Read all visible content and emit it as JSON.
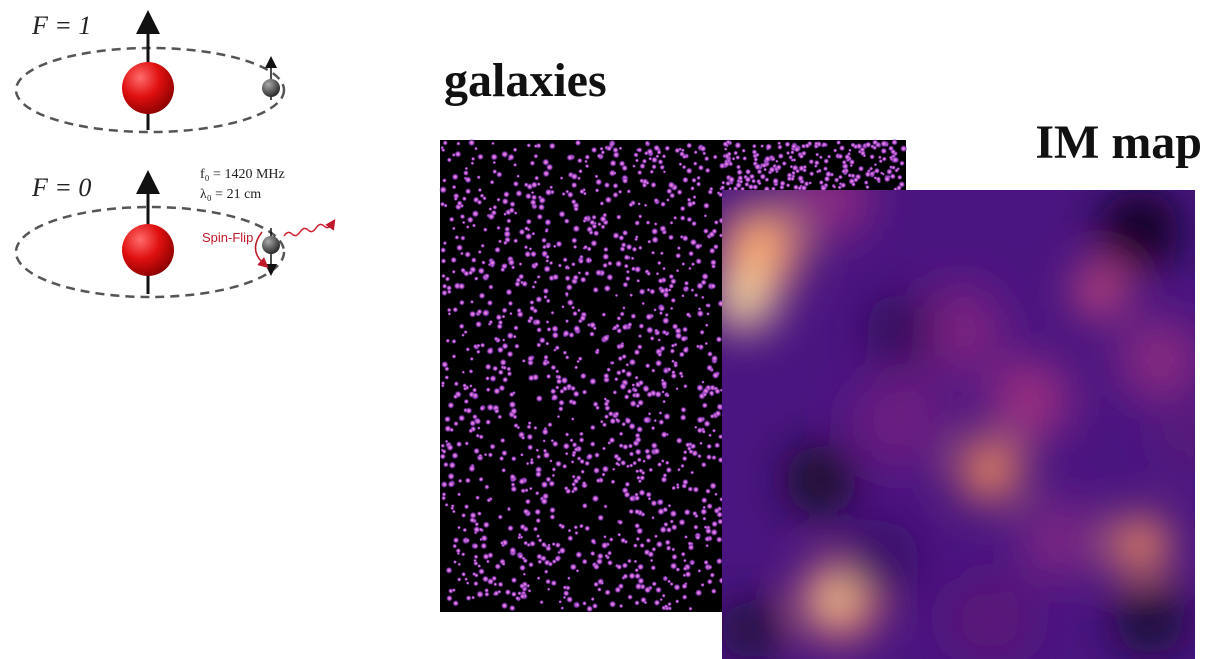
{
  "diagram": {
    "states": [
      {
        "label": "F = 1"
      },
      {
        "label": "F = 0",
        "transition": "Spin-Flip",
        "frequency": "f₀ = 1420 MHz",
        "wavelength": "λ₀ = 21 cm"
      }
    ],
    "panels": [
      {
        "label": "galaxies"
      },
      {
        "label": "IM map"
      }
    ]
  }
}
